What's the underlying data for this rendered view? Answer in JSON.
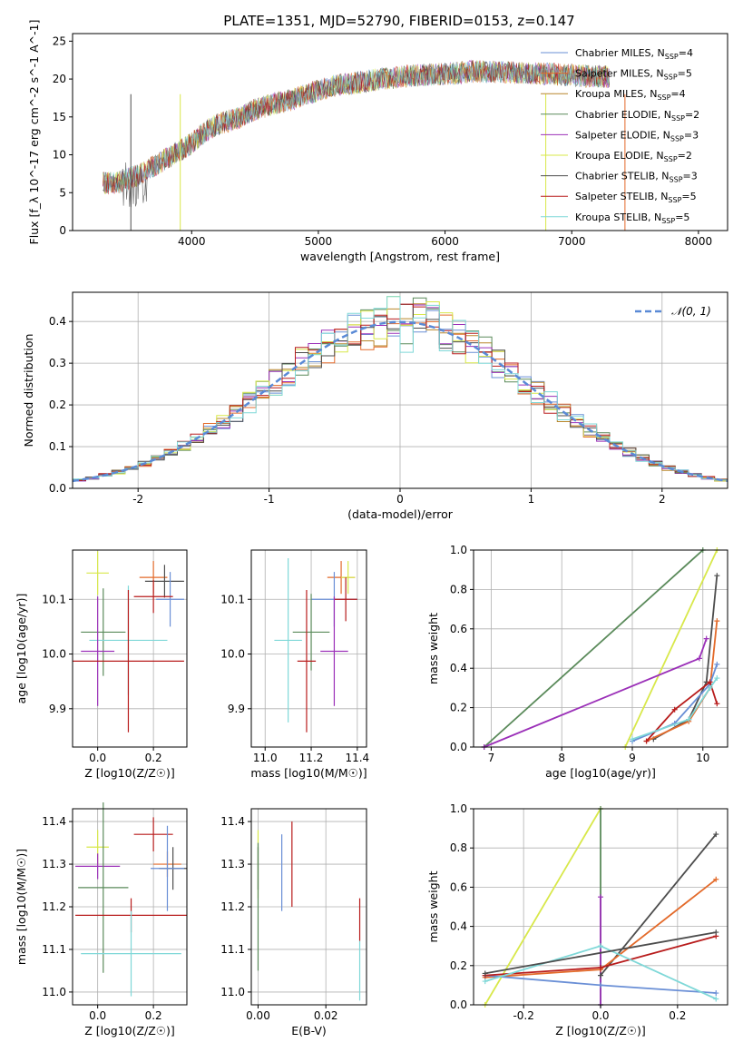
{
  "figure": {
    "title": "PLATE=1351, MJD=52790, FIBERID=0153, z=0.147"
  },
  "series_styles": [
    {
      "name": "Chabrier MILES",
      "n": 4,
      "color": "#6a8fd6"
    },
    {
      "name": "Salpeter MILES",
      "n": 5,
      "color": "#e36a2a"
    },
    {
      "name": "Kroupa MILES",
      "n": 4,
      "color": "#b8862a"
    },
    {
      "name": "Chabrier ELODIE",
      "n": 2,
      "color": "#5a8a5a"
    },
    {
      "name": "Salpeter ELODIE",
      "n": 3,
      "color": "#9b30b8"
    },
    {
      "name": "Kroupa ELODIE",
      "n": 2,
      "color": "#d8e84a"
    },
    {
      "name": "Chabrier STELIB",
      "n": 3,
      "color": "#4d4d4d"
    },
    {
      "name": "Salpeter STELIB",
      "n": 5,
      "color": "#b81c1c"
    },
    {
      "name": "Kroupa STELIB",
      "n": 5,
      "color": "#7fd8d8"
    }
  ],
  "chart_data": [
    {
      "id": "spectrum",
      "type": "line",
      "title": "PLATE=1351, MJD=52790, FIBERID=0153, z=0.147",
      "xlabel": "wavelength [Angstrom, rest frame]",
      "ylabel": "Flux [f_λ 10^-17 erg cm^-2 s^-1 A^-1]",
      "xlim": [
        3060,
        8230
      ],
      "ylim": [
        0,
        26
      ],
      "xticks": [
        4000,
        5000,
        6000,
        7000,
        8000
      ],
      "yticks": [
        0,
        5,
        10,
        15,
        20,
        25
      ],
      "x": [
        3300,
        3400,
        3500,
        3600,
        3700,
        3800,
        3900,
        4000,
        4100,
        4200,
        4300,
        4400,
        4500,
        4600,
        4700,
        4800,
        4900,
        5000,
        5100,
        5200,
        5300,
        5400,
        5500,
        5600,
        5700,
        5800,
        5900,
        6000,
        6100,
        6200,
        6300,
        6400,
        6500,
        6600,
        6700,
        6800,
        6900,
        7000,
        7100,
        7200,
        7300
      ],
      "series": [
        {
          "name": "Chabrier MILES",
          "values": [
            6.3,
            6.2,
            6.8,
            7.5,
            8.5,
            9.5,
            10.5,
            11.5,
            13.0,
            14.0,
            14.5,
            15.0,
            16.0,
            16.5,
            17.0,
            17.3,
            18.0,
            18.5,
            19.0,
            19.3,
            19.5,
            19.8,
            20.0,
            20.2,
            20.4,
            20.5,
            20.6,
            20.7,
            20.8,
            21.0,
            21.0,
            20.9,
            20.9,
            20.8,
            20.7,
            20.7,
            20.6,
            20.5,
            20.4,
            20.3,
            20.3
          ]
        }
      ],
      "legend_location": "upper right",
      "grid": false
    },
    {
      "id": "residuals",
      "type": "line",
      "xlabel": "(data-model)/error",
      "ylabel": "Normed distribution",
      "xlim": [
        -2.5,
        2.5
      ],
      "ylim": [
        0,
        0.47
      ],
      "xticks": [
        -2,
        -1,
        0,
        1,
        2
      ],
      "yticks": [
        0.0,
        0.1,
        0.2,
        0.3,
        0.4
      ],
      "reference_curve": "N(0,1)",
      "legend": [
        "N(0,1)"
      ],
      "legend_location": "upper right",
      "grid": true
    },
    {
      "id": "age_vs_Z",
      "type": "scatter",
      "xlabel": "Z [log10(Z/Z☉)]",
      "ylabel": "age [log10(age/yr)]",
      "xlim": [
        -0.09,
        0.32
      ],
      "ylim": [
        9.83,
        10.19
      ],
      "xticks": [
        0.0,
        0.2
      ],
      "yticks": [
        9.9,
        10.0,
        10.1
      ],
      "points": [
        {
          "x": 0.0,
          "y": 10.148,
          "xerr": 0.05,
          "yerr": 0.04
        },
        {
          "x": 0.2,
          "y": 10.14,
          "xerr": 0.05,
          "yerr": 0.03
        },
        {
          "x": 0.25,
          "y": 10.1,
          "xerr": 0.06,
          "yerr": 0.04
        },
        {
          "x": 0.02,
          "y": 10.04,
          "xerr": 0.08,
          "yerr": 0.08
        },
        {
          "x": 0.12,
          "y": 9.987,
          "xerr": 0.2,
          "yerr": 0.12
        },
        {
          "x": 0.13,
          "y": 10.025,
          "xerr": 0.12,
          "yerr": 0.15
        }
      ],
      "grid": true
    },
    {
      "id": "age_vs_mass",
      "type": "scatter",
      "xlabel": "mass [log10(M/M☉)]",
      "ylabel": "",
      "xlim": [
        10.94,
        11.44
      ],
      "ylim": [
        9.83,
        10.19
      ],
      "xticks": [
        11.0,
        11.2,
        11.4
      ],
      "yticks": [
        9.9,
        10.0,
        10.1
      ],
      "grid": true
    },
    {
      "id": "weight_vs_age",
      "type": "line",
      "xlabel": "age [log10(age/yr)]",
      "ylabel": "mass weight",
      "xlim": [
        6.75,
        10.35
      ],
      "ylim": [
        0,
        1.0
      ],
      "xticks": [
        7,
        8,
        9,
        10
      ],
      "yticks": [
        0.0,
        0.2,
        0.4,
        0.6,
        0.8,
        1.0
      ],
      "grid": true
    },
    {
      "id": "mass_vs_Z",
      "type": "scatter",
      "xlabel": "Z [log10(Z/Z☉)]",
      "ylabel": "mass [log10(M/M☉)]",
      "xlim": [
        -0.09,
        0.32
      ],
      "ylim": [
        10.97,
        11.43
      ],
      "xticks": [
        0.0,
        0.2
      ],
      "yticks": [
        11.0,
        11.1,
        11.2,
        11.3,
        11.4
      ],
      "grid": true
    },
    {
      "id": "mass_vs_EBV",
      "type": "scatter",
      "xlabel": "E(B-V)",
      "ylabel": "",
      "xlim": [
        -0.002,
        0.032
      ],
      "ylim": [
        10.97,
        11.43
      ],
      "xticks": [
        0.0,
        0.02
      ],
      "yticks": [
        11.0,
        11.1,
        11.2,
        11.3,
        11.4
      ],
      "grid": true
    },
    {
      "id": "weight_vs_Z",
      "type": "line",
      "xlabel": "Z [log10(Z/Z☉)]",
      "ylabel": "mass weight",
      "xlim": [
        -0.33,
        0.33
      ],
      "ylim": [
        0,
        1.0
      ],
      "xticks": [
        -0.2,
        0.0,
        0.2
      ],
      "yticks": [
        0.0,
        0.2,
        0.4,
        0.6,
        0.8,
        1.0
      ],
      "grid": true
    }
  ]
}
